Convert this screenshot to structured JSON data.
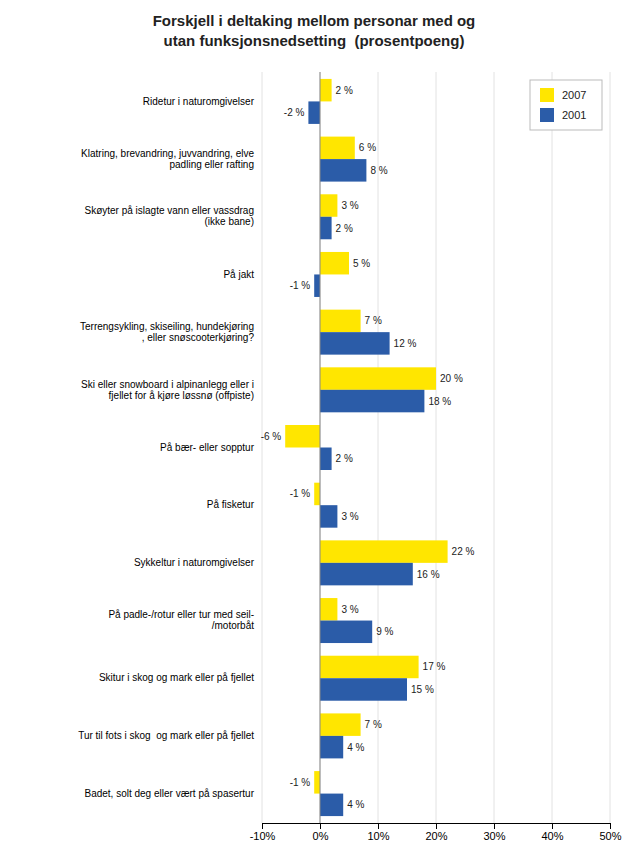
{
  "chart_data": {
    "type": "bar",
    "orientation": "horizontal",
    "title": "Forskjell i deltaking mellom personar med og\nutan funksjonsnedsetting  (prosentpoeng)",
    "categories": [
      "Ridetur i naturomgivelser",
      "Klatring, brevandring, juvvandring, elve\npadling eller rafting",
      "Skøyter på islagte vann eller vassdrag\n(ikke bane)",
      "På jakt",
      "Terrengsykling, skiseiling, hundekjøring\n, eller snøscooterkjøring?",
      "Ski eller snowboard i alpinanlegg eller i\nfjellet for å kjøre løssnø (offpiste)",
      "På bær- eller sopptur",
      "På fisketur",
      "Sykkeltur i naturomgivelser",
      "På padle-/rotur eller tur med seil-\n/motorbåt",
      "Skitur i skog og mark eller på fjellet",
      "Tur til fots i skog  og mark eller på fjellet",
      "Badet, solt deg eller vært på spasertur"
    ],
    "series": [
      {
        "name": "2007",
        "color": "#FFE600",
        "values": [
          2,
          6,
          3,
          5,
          7,
          20,
          -6,
          -1,
          22,
          3,
          17,
          7,
          -1
        ],
        "value_labels": [
          "2 %",
          "6 %",
          "3 %",
          "5 %",
          "7 %",
          "20 %",
          "-6 %",
          "-1 %",
          "22 %",
          "3 %",
          "17 %",
          "7 %",
          "-1 %"
        ]
      },
      {
        "name": "2001",
        "color": "#2B5CA8",
        "values": [
          -2,
          8,
          2,
          -1,
          12,
          18,
          2,
          3,
          16,
          9,
          15,
          4,
          4
        ],
        "value_labels": [
          "-2 %",
          "8 %",
          "2 %",
          "-1 %",
          "12 %",
          "18 %",
          "2 %",
          "3 %",
          "16 %",
          "9 %",
          "15 %",
          "4 %",
          "4 %"
        ]
      }
    ],
    "xlim": [
      -10,
      50
    ],
    "xticks": [
      {
        "value": -10,
        "label": "-10%"
      },
      {
        "value": 0,
        "label": "0%"
      },
      {
        "value": 10,
        "label": "10%"
      },
      {
        "value": 20,
        "label": "20%"
      },
      {
        "value": 30,
        "label": "30%"
      },
      {
        "value": 40,
        "label": "40%"
      },
      {
        "value": 50,
        "label": "50%"
      }
    ],
    "grid": true,
    "legend": "upper right",
    "data_labels": true
  }
}
